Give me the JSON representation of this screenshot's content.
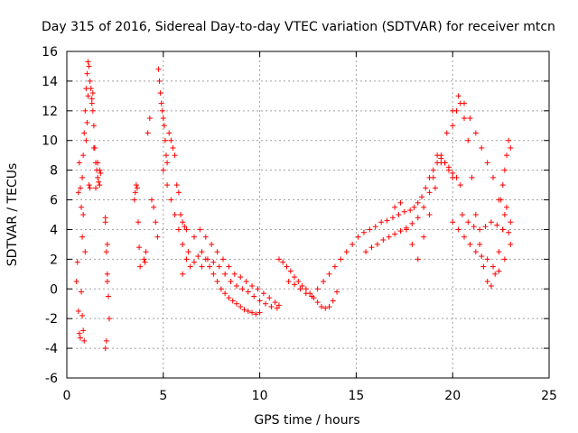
{
  "chart_data": {
    "type": "scatter",
    "title": "Day 315 of 2016, Sidereal Day-to-day VTEC variation (SDTVAR) for receiver mtcn",
    "xlabel": "GPS time / hours",
    "ylabel": "SDTVAR / TECUs",
    "xlim": [
      0,
      25
    ],
    "ylim": [
      -6,
      16
    ],
    "xticks": [
      0,
      5,
      10,
      15,
      20,
      25
    ],
    "yticks": [
      -6,
      -4,
      -2,
      0,
      2,
      4,
      6,
      8,
      10,
      12,
      14,
      16
    ],
    "grid": true,
    "marker": "+",
    "color": "#ff0000",
    "series": [
      {
        "name": "SDTVAR",
        "x": [
          0.5,
          0.55,
          0.6,
          0.65,
          0.7,
          0.75,
          0.8,
          0.85,
          0.9,
          0.95,
          1.0,
          1.05,
          1.1,
          1.15,
          1.2,
          1.25,
          1.3,
          1.35,
          1.4,
          1.45,
          1.5,
          1.55,
          1.6,
          1.65,
          1.7,
          1.75,
          0.75,
          0.8,
          0.85,
          0.9,
          0.95,
          0.6,
          0.65,
          0.7,
          0.8,
          0.85,
          1.0,
          1.05,
          1.1,
          1.15,
          1.2,
          1.3,
          1.35,
          1.4,
          1.5,
          1.6,
          1.7,
          2.0,
          2.05,
          2.1,
          2.15,
          2.2,
          2.0,
          2.05,
          2.1,
          2.0,
          2.1,
          3.5,
          3.55,
          3.6,
          3.65,
          3.7,
          3.75,
          3.8,
          4.0,
          4.05,
          4.1,
          4.2,
          4.3,
          4.4,
          4.5,
          4.6,
          4.7,
          4.75,
          4.8,
          4.85,
          4.9,
          4.95,
          5.0,
          5.05,
          5.1,
          5.15,
          5.2,
          5.3,
          5.4,
          5.5,
          5.6,
          5.7,
          5.8,
          5.9,
          6.0,
          6.1,
          6.2,
          5.0,
          5.2,
          5.4,
          5.6,
          5.8,
          6.0,
          6.2,
          6.4,
          6.6,
          6.8,
          7.0,
          7.2,
          7.4,
          7.6,
          7.8,
          8.0,
          8.2,
          8.4,
          8.6,
          8.8,
          9.0,
          9.2,
          9.4,
          9.6,
          9.8,
          10.0,
          6.0,
          6.3,
          6.6,
          6.9,
          7.2,
          7.5,
          7.8,
          8.1,
          8.4,
          8.7,
          9.0,
          9.3,
          9.6,
          9.9,
          10.2,
          10.5,
          10.8,
          11.0,
          7.0,
          7.3,
          7.6,
          7.9,
          8.2,
          8.5,
          8.8,
          9.1,
          9.4,
          9.7,
          10.0,
          10.3,
          10.6,
          10.9,
          11.0,
          11.2,
          11.4,
          11.6,
          11.8,
          12.0,
          12.2,
          12.4,
          12.6,
          12.8,
          13.0,
          13.2,
          13.4,
          13.6,
          13.8,
          14.0,
          11.5,
          11.8,
          12.1,
          12.4,
          12.7,
          13.0,
          13.3,
          13.6,
          13.9,
          14.2,
          14.5,
          14.8,
          15.1,
          15.4,
          15.7,
          16.0,
          16.3,
          16.6,
          16.9,
          17.2,
          17.5,
          17.8,
          18.0,
          18.2,
          18.4,
          18.6,
          18.8,
          19.0,
          19.2,
          19.4,
          19.6,
          19.8,
          20.0,
          15.5,
          15.8,
          16.1,
          16.4,
          16.7,
          17.0,
          17.3,
          17.6,
          17.9,
          18.2,
          18.5,
          18.8,
          19.0,
          19.2,
          19.4,
          19.6,
          19.8,
          20.0,
          20.2,
          20.4,
          17.0,
          17.3,
          17.6,
          17.9,
          18.2,
          18.5,
          18.8,
          19.1,
          19.4,
          19.7,
          20.0,
          20.3,
          20.6,
          20.9,
          21.2,
          21.5,
          21.8,
          22.1,
          22.4,
          22.7,
          23.0,
          20.0,
          20.2,
          20.4,
          20.6,
          20.8,
          21.0,
          21.2,
          21.4,
          21.6,
          21.8,
          22.0,
          22.2,
          22.4,
          22.6,
          22.8,
          20.5,
          20.8,
          21.1,
          21.4,
          21.7,
          22.0,
          22.3,
          22.6,
          22.9,
          20.0,
          20.3,
          20.6,
          20.9,
          21.2,
          21.5,
          21.8,
          22.1,
          22.4,
          22.7,
          23.0,
          22.5,
          22.6,
          22.7,
          22.8,
          22.9,
          23.0
        ],
        "y": [
          0.5,
          1.8,
          6.5,
          8.5,
          6.8,
          5.5,
          7.5,
          9.0,
          10.5,
          12.0,
          13.5,
          14.5,
          15.3,
          15.0,
          14.0,
          13.5,
          12.8,
          12.0,
          11.0,
          9.5,
          8.5,
          8.0,
          7.5,
          7.2,
          8.0,
          7.8,
          -0.2,
          -1.8,
          -2.8,
          -3.5,
          2.5,
          -1.5,
          -3.0,
          -3.3,
          3.5,
          5.0,
          10.0,
          11.2,
          13.0,
          7.0,
          6.8,
          12.5,
          13.2,
          9.5,
          6.8,
          8.5,
          7.0,
          4.5,
          2.5,
          1.0,
          -0.5,
          -2.0,
          -4.0,
          -3.5,
          0.5,
          4.8,
          3.0,
          6.0,
          6.5,
          7.0,
          6.8,
          4.5,
          2.8,
          1.5,
          2.0,
          1.8,
          2.5,
          10.5,
          11.5,
          6.0,
          5.5,
          4.5,
          3.5,
          14.8,
          14.0,
          13.2,
          12.5,
          12.0,
          11.5,
          11.0,
          10.0,
          9.0,
          8.5,
          10.5,
          10.0,
          9.5,
          9.0,
          7.0,
          6.5,
          5.0,
          4.5,
          4.2,
          4.0,
          8.0,
          7.0,
          6.0,
          5.0,
          4.0,
          3.0,
          2.0,
          1.5,
          1.8,
          2.2,
          2.5,
          2.0,
          1.5,
          1.0,
          0.5,
          0.0,
          -0.3,
          -0.6,
          -0.8,
          -1.0,
          -1.2,
          -1.4,
          -1.5,
          -1.6,
          -1.7,
          -1.6,
          1.0,
          2.5,
          3.5,
          4.0,
          3.5,
          3.0,
          2.5,
          2.0,
          1.5,
          1.0,
          0.8,
          0.5,
          0.2,
          0.0,
          -0.3,
          -0.6,
          -0.9,
          -1.1,
          1.5,
          2.0,
          1.8,
          1.5,
          1.0,
          0.5,
          0.2,
          0.0,
          -0.2,
          -0.5,
          -0.8,
          -1.0,
          -1.2,
          -1.3,
          2.0,
          1.8,
          1.5,
          1.2,
          0.8,
          0.5,
          0.2,
          0.0,
          -0.3,
          -0.6,
          -0.9,
          -1.2,
          -1.3,
          -1.2,
          -0.8,
          -0.2,
          0.5,
          0.3,
          0.0,
          -0.3,
          -0.5,
          0.0,
          0.5,
          1.0,
          1.5,
          2.0,
          2.5,
          3.0,
          3.5,
          3.8,
          4.0,
          4.2,
          4.5,
          4.6,
          4.8,
          5.0,
          5.2,
          5.3,
          5.5,
          5.8,
          6.2,
          6.8,
          7.5,
          8.0,
          8.5,
          9.0,
          8.5,
          8.0,
          7.5,
          2.5,
          2.8,
          3.0,
          3.3,
          3.5,
          3.7,
          3.9,
          4.1,
          4.4,
          4.8,
          5.5,
          6.5,
          7.5,
          9.0,
          8.8,
          8.5,
          8.2,
          7.8,
          7.5,
          7.0,
          5.5,
          5.8,
          4.0,
          3.0,
          2.0,
          3.5,
          5.0,
          6.8,
          8.5,
          10.5,
          12.0,
          13.0,
          12.5,
          11.5,
          10.5,
          9.5,
          8.5,
          7.5,
          6.0,
          5.0,
          4.5,
          11.0,
          12.0,
          12.5,
          11.5,
          10.0,
          7.5,
          5.0,
          3.0,
          1.5,
          0.5,
          0.2,
          1.0,
          2.5,
          4.0,
          5.5,
          5.0,
          4.5,
          4.2,
          4.0,
          4.2,
          4.5,
          4.3,
          4.0,
          3.8,
          4.5,
          4.0,
          3.5,
          3.0,
          2.5,
          2.2,
          2.0,
          1.5,
          1.2,
          2.0,
          3.0,
          6.0,
          7.0,
          8.0,
          9.0,
          10.0,
          9.5
        ]
      }
    ]
  }
}
